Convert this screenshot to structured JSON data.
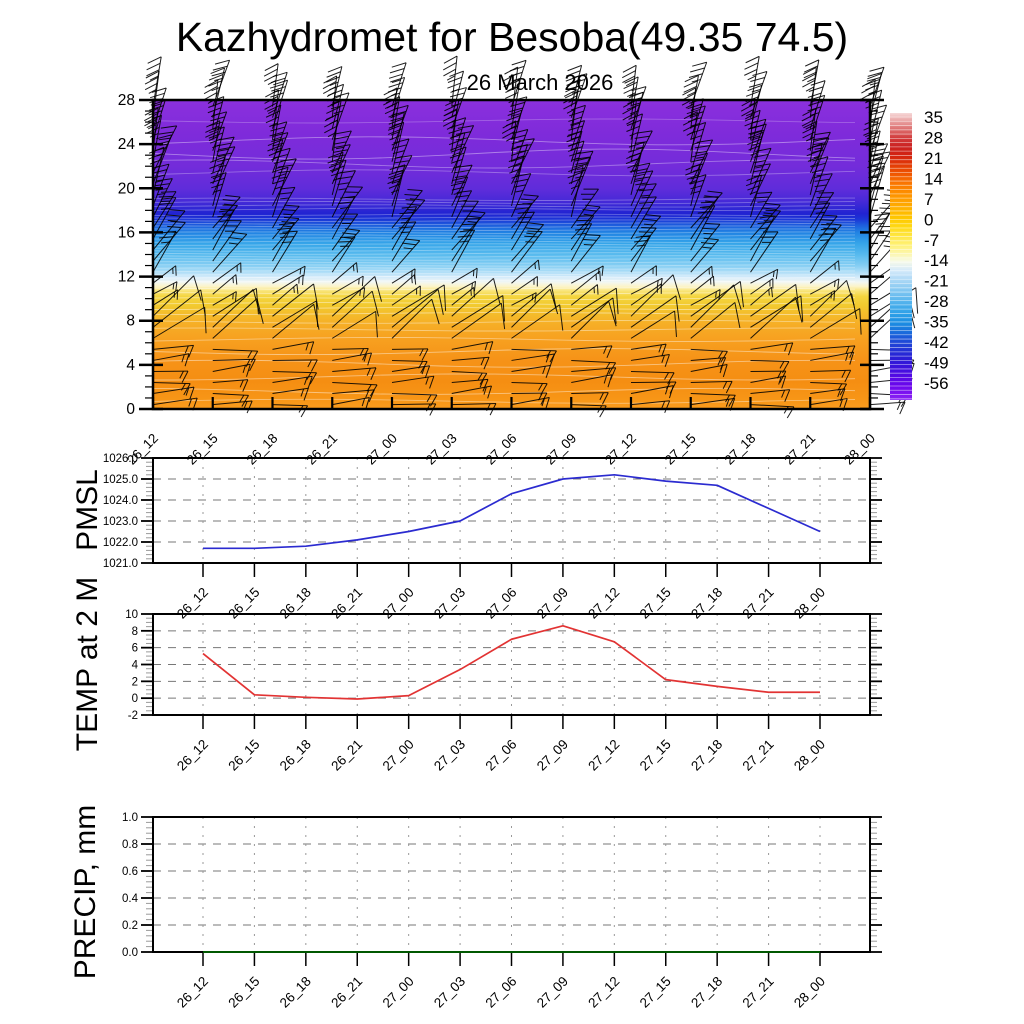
{
  "page": {
    "title": "Kazhydromet for Besoba(49.35 74.5)",
    "subtitle": "26 March 2026"
  },
  "time_labels": [
    "26_12",
    "26_15",
    "26_18",
    "26_21",
    "27_00",
    "27_03",
    "27_06",
    "27_09",
    "27_12",
    "27_15",
    "27_18",
    "27_21",
    "28_00"
  ],
  "chart_data": [
    {
      "id": "profile",
      "type": "heatmap",
      "name": "vertical-temperature-wind-profile",
      "ylabel": "",
      "ylim": [
        0,
        28
      ],
      "yticks": [
        0,
        4,
        8,
        12,
        16,
        20,
        24,
        28
      ],
      "x_categories": [
        "26_12",
        "26_15",
        "26_18",
        "26_21",
        "27_00",
        "27_03",
        "27_06",
        "27_09",
        "27_12",
        "27_15",
        "27_18",
        "27_21",
        "28_00"
      ],
      "legend_position": "right",
      "grid": false,
      "gradient_stops": [
        {
          "level": 28,
          "color": "#8b30dd"
        },
        {
          "level": 25,
          "color": "#7f2bda"
        },
        {
          "level": 22,
          "color": "#732cda"
        },
        {
          "level": 20,
          "color": "#602cda"
        },
        {
          "level": 19,
          "color": "#4b2ad8"
        },
        {
          "level": 18.3,
          "color": "#3428d5"
        },
        {
          "level": 17.7,
          "color": "#2123d2"
        },
        {
          "level": 17.2,
          "color": "#1c35d6"
        },
        {
          "level": 16.7,
          "color": "#1d5bdc"
        },
        {
          "level": 16,
          "color": "#2183e3"
        },
        {
          "level": 15,
          "color": "#36a5e9"
        },
        {
          "level": 14,
          "color": "#57baee"
        },
        {
          "level": 13,
          "color": "#85cef3"
        },
        {
          "level": 12.4,
          "color": "#afdef7"
        },
        {
          "level": 11.9,
          "color": "#d7ecfa"
        },
        {
          "level": 11.5,
          "color": "#f2f7f3"
        },
        {
          "level": 11.1,
          "color": "#fcf4c8"
        },
        {
          "level": 10.7,
          "color": "#f9e477"
        },
        {
          "level": 10.2,
          "color": "#f4d53f"
        },
        {
          "level": 9.4,
          "color": "#f2ca2f"
        },
        {
          "level": 8.6,
          "color": "#f4bc2b"
        },
        {
          "level": 7.6,
          "color": "#f6ad26"
        },
        {
          "level": 6.4,
          "color": "#f7a120"
        },
        {
          "level": 4.5,
          "color": "#f69318"
        },
        {
          "level": 2.5,
          "color": "#f58e12"
        },
        {
          "level": 1,
          "color": "#f79516"
        },
        {
          "level": 0,
          "color": "#fa9c1e"
        }
      ],
      "colorbar": {
        "tick_labels": [
          "35",
          "28",
          "21",
          "14",
          "7",
          "0",
          "-7",
          "-14",
          "-21",
          "-28",
          "-35",
          "-42",
          "-49",
          "-56"
        ],
        "value_top": 36.5,
        "value_bottom": -61,
        "stops": [
          {
            "value": 36.5,
            "color": "#f6d8d8"
          },
          {
            "value": 34,
            "color": "#eaa6a6"
          },
          {
            "value": 31,
            "color": "#dd6f6f"
          },
          {
            "value": 28,
            "color": "#d23b3b"
          },
          {
            "value": 25,
            "color": "#cb2121"
          },
          {
            "value": 22,
            "color": "#d32411"
          },
          {
            "value": 19,
            "color": "#e23a06"
          },
          {
            "value": 16,
            "color": "#ef5501"
          },
          {
            "value": 13,
            "color": "#f97201"
          },
          {
            "value": 10,
            "color": "#fd8b00"
          },
          {
            "value": 7,
            "color": "#ff9e00"
          },
          {
            "value": 4,
            "color": "#ffb200"
          },
          {
            "value": 1,
            "color": "#ffc600"
          },
          {
            "value": -2,
            "color": "#ffd812"
          },
          {
            "value": -5,
            "color": "#ffe53e"
          },
          {
            "value": -8,
            "color": "#fff071"
          },
          {
            "value": -11,
            "color": "#fdf6a8"
          },
          {
            "value": -14,
            "color": "#f6fae8"
          },
          {
            "value": -17,
            "color": "#d4e9fa"
          },
          {
            "value": -20,
            "color": "#aed9f6"
          },
          {
            "value": -23,
            "color": "#8ccbf2"
          },
          {
            "value": -26,
            "color": "#68bcef"
          },
          {
            "value": -29,
            "color": "#46adeb"
          },
          {
            "value": -32,
            "color": "#2b9fe7"
          },
          {
            "value": -35,
            "color": "#1b8ce2"
          },
          {
            "value": -38,
            "color": "#1a6cdc"
          },
          {
            "value": -41,
            "color": "#1e4bd7"
          },
          {
            "value": -44,
            "color": "#2332d5"
          },
          {
            "value": -47,
            "color": "#2b1dd6"
          },
          {
            "value": -50,
            "color": "#3d12dc"
          },
          {
            "value": -53,
            "color": "#5409e4"
          },
          {
            "value": -56,
            "color": "#6b07ec"
          },
          {
            "value": -59,
            "color": "#7f15f1"
          },
          {
            "value": -61,
            "color": "#8a24f3"
          }
        ]
      },
      "wind_barbs": {
        "columns": 13,
        "level_start": 0.4,
        "level_end": 27.4,
        "level_step": 1,
        "bands": [
          {
            "min": 0,
            "max": 6,
            "dir": 4,
            "staff": 40,
            "feathers": [
              13,
              8
            ],
            "fangle": -118
          },
          {
            "min": 6,
            "max": 9,
            "dir": 38,
            "staff": 56,
            "feathers": [
              26
            ],
            "fangle": -118
          },
          {
            "min": 9,
            "max": 12,
            "dir": 34,
            "staff": 32,
            "feathers": [
              10,
              6
            ],
            "fangle": -125
          },
          {
            "min": 12,
            "max": 17,
            "dir": 55,
            "staff": 46,
            "feathers": [
              15,
              14,
              9
            ],
            "fangle": 125
          },
          {
            "min": 17,
            "max": 22,
            "dir": 70,
            "staff": 48,
            "feathers": [
              16,
              15,
              12,
              8
            ],
            "fangle": 125
          },
          {
            "min": 22,
            "max": 28,
            "dir": 77,
            "staff": 46,
            "feathers": [
              15,
              15,
              14,
              9
            ],
            "fangle": 125
          }
        ]
      },
      "contours": {
        "bands": [
          {
            "from": 12.2,
            "to": 17.8,
            "step": 0.27,
            "amp": 0.8,
            "opacity": 0.3
          },
          {
            "from": 18.1,
            "to": 19.0,
            "step": 0.3,
            "amp": 1.2,
            "opacity": 0.3
          },
          {
            "from": 8.65,
            "to": 11.2,
            "step": 0.45,
            "amp": 1.0,
            "opacity": 0.45
          },
          {
            "from": 11.6,
            "to": 11.95,
            "step": 0.35,
            "amp": 0.8,
            "opacity": 0.5
          }
        ],
        "waves": [
          {
            "level": 26.1,
            "amp": 2,
            "opacity": 0.25
          },
          {
            "level": 24.3,
            "amp": 4,
            "opacity": 0.4
          },
          {
            "level": 23.1,
            "amp": 5,
            "opacity": 0.4
          },
          {
            "level": 22.2,
            "amp": 4,
            "opacity": 0.35
          },
          {
            "level": 21.4,
            "amp": 3,
            "opacity": 0.3
          },
          {
            "level": 7.9,
            "amp": 1.5,
            "opacity": 0.4
          },
          {
            "level": 7.2,
            "amp": 1.5,
            "opacity": 0.4
          },
          {
            "level": 6.3,
            "amp": 2,
            "opacity": 0.4
          },
          {
            "level": 5.2,
            "amp": 3,
            "opacity": 0.45
          },
          {
            "level": 4.1,
            "amp": 3.5,
            "opacity": 0.45
          },
          {
            "level": 2.9,
            "amp": 3,
            "opacity": 0.45
          },
          {
            "level": 1.6,
            "amp": 3,
            "opacity": 0.45
          },
          {
            "level": 0.7,
            "amp": 2,
            "opacity": 0.4
          }
        ]
      }
    },
    {
      "id": "pmsl",
      "type": "line",
      "ylabel": "PMSL",
      "ylim": [
        1021,
        1026
      ],
      "yticks": [
        1021,
        1022,
        1023,
        1024,
        1025,
        1026
      ],
      "grid_y": [
        1022,
        1023,
        1024,
        1025
      ],
      "minor_step": 0.2,
      "ytick_decimals": 1,
      "series_color": "#2b2bd0",
      "x": [
        "26_12",
        "26_15",
        "26_18",
        "26_21",
        "27_00",
        "27_03",
        "27_06",
        "27_09",
        "27_12",
        "27_15",
        "27_18",
        "27_21",
        "28_00"
      ],
      "values": [
        1021.7,
        1021.7,
        1021.8,
        1022.1,
        1022.5,
        1023.0,
        1024.3,
        1025.0,
        1025.2,
        1024.9,
        1024.7,
        1023.6,
        1022.5
      ]
    },
    {
      "id": "temp",
      "type": "line",
      "ylabel": "TEMP at 2 M",
      "ylim": [
        -2,
        10
      ],
      "yticks": [
        -2,
        0,
        2,
        4,
        6,
        8,
        10
      ],
      "grid_y": [
        0,
        2,
        4,
        6,
        8
      ],
      "minor_step": 0.5,
      "ytick_decimals": 0,
      "series_color": "#e23333",
      "x": [
        "26_12",
        "26_15",
        "26_18",
        "26_21",
        "27_00",
        "27_03",
        "27_06",
        "27_09",
        "27_12",
        "27_15",
        "27_18",
        "27_21",
        "28_00"
      ],
      "values": [
        5.3,
        0.4,
        0.1,
        -0.1,
        0.3,
        3.4,
        7.0,
        8.6,
        6.7,
        2.2,
        1.4,
        0.7,
        0.7
      ]
    },
    {
      "id": "precip",
      "type": "line",
      "ylabel": "PRECIP, mm",
      "ylim": [
        0,
        1
      ],
      "yticks": [
        0,
        0.2,
        0.4,
        0.6,
        0.8,
        1.0
      ],
      "grid_y": [
        0.2,
        0.4,
        0.6,
        0.8,
        1.0
      ],
      "minor_step": 0.04,
      "ytick_decimals": 1,
      "series_color": "#006400",
      "x": [
        "26_12",
        "26_15",
        "26_18",
        "26_21",
        "27_00",
        "27_03",
        "27_06",
        "27_09",
        "27_12",
        "27_15",
        "27_18",
        "27_21",
        "28_00"
      ],
      "values": [
        0,
        0,
        0,
        0,
        0,
        0,
        0,
        0,
        0,
        0,
        0,
        0,
        0
      ]
    }
  ]
}
